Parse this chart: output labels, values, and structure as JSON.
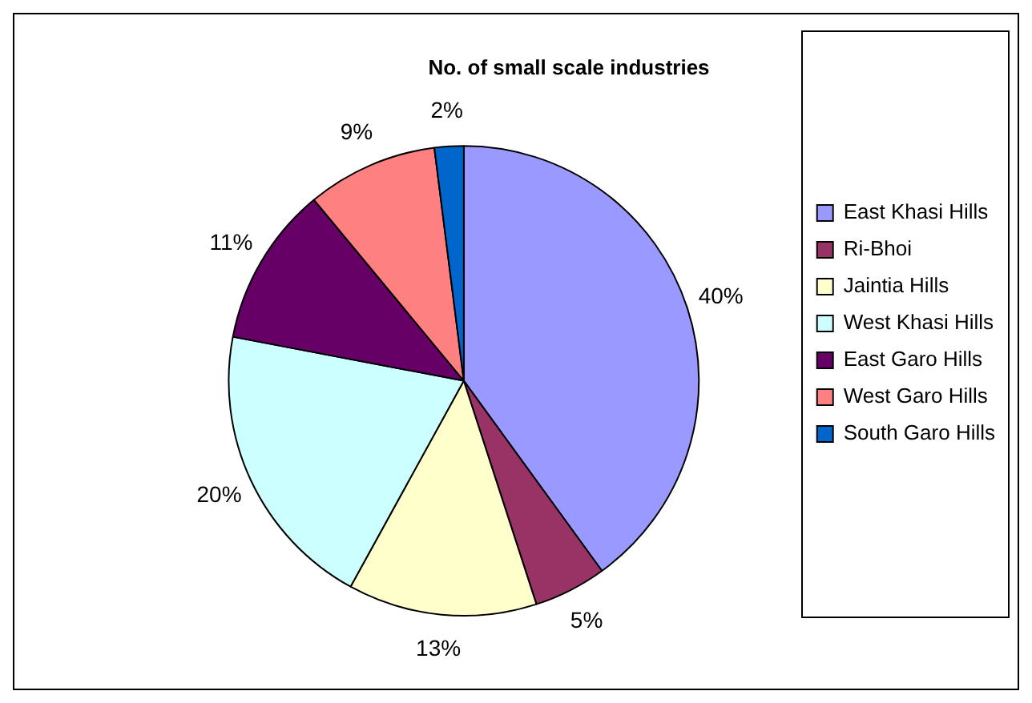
{
  "chart_data": {
    "type": "pie",
    "title": "No. of small scale industries",
    "categories": [
      "East Khasi Hills",
      "Ri-Bhoi",
      "Jaintia Hills",
      "West Khasi Hills",
      "East Garo Hills",
      "West Garo Hills",
      "South Garo Hills"
    ],
    "values": [
      40,
      5,
      13,
      20,
      11,
      9,
      2
    ],
    "value_labels": [
      "40%",
      "5%",
      "13%",
      "20%",
      "11%",
      "9%",
      "2%"
    ],
    "colors": [
      "#9999ff",
      "#993366",
      "#ffffcc",
      "#ccffff",
      "#660066",
      "#ff8080",
      "#0066cc"
    ],
    "legend": "right"
  }
}
